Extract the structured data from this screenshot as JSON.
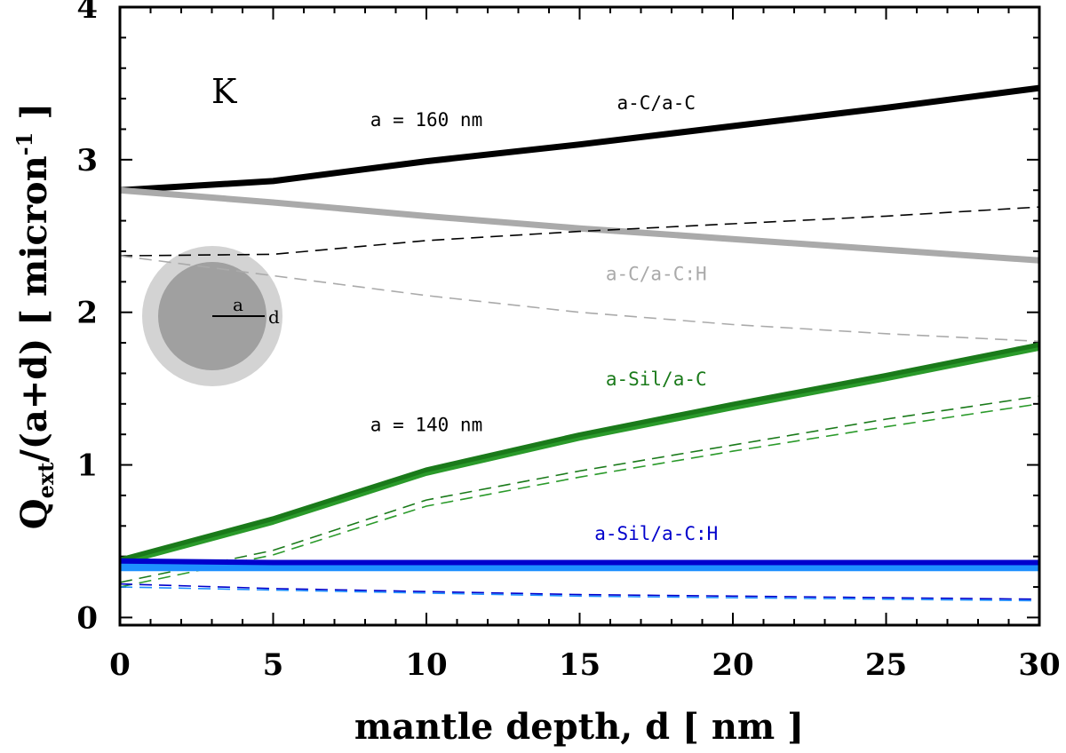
{
  "chart_data": {
    "type": "line",
    "panel_label": "K",
    "xlabel": "mantle depth, d [ nm ]",
    "ylabel_main": "Q",
    "ylabel_sub": "ext",
    "ylabel_rest": "/(a+d) [ micron",
    "ylabel_sup": "-1",
    "ylabel_close": " ]",
    "xlim": [
      0,
      30
    ],
    "ylim": [
      -0.05,
      4
    ],
    "xticks": [
      0,
      5,
      10,
      15,
      20,
      25,
      30
    ],
    "yticks": [
      0,
      1,
      2,
      3,
      4
    ],
    "x": [
      0,
      5,
      10,
      15,
      20,
      25,
      30
    ],
    "colors": {
      "black": "#000000",
      "grey": "#aaaaaa",
      "green_dark": "#1a7a1a",
      "green": "#2a9a2a",
      "blue": "#0000cc",
      "light_blue": "#1e90ff"
    },
    "series": [
      {
        "name": "a-C/a-C a=160 nm",
        "style": "solid",
        "color": "#000000",
        "width": 7,
        "values": [
          2.8,
          2.86,
          2.99,
          3.1,
          3.22,
          3.34,
          3.47
        ]
      },
      {
        "name": "a-C/a-C:H a=160 nm",
        "style": "solid",
        "color": "#aaaaaa",
        "width": 7,
        "values": [
          2.8,
          2.72,
          2.63,
          2.55,
          2.48,
          2.41,
          2.34
        ]
      },
      {
        "name": "a-C/a-C a=140 nm",
        "style": "dashed",
        "color": "#000000",
        "width": 1.6,
        "values": [
          2.37,
          2.38,
          2.47,
          2.53,
          2.58,
          2.63,
          2.69
        ]
      },
      {
        "name": "a-C/a-C:H a=140 nm",
        "style": "dashed",
        "color": "#aaaaaa",
        "width": 1.6,
        "values": [
          2.37,
          2.24,
          2.11,
          2.0,
          1.92,
          1.86,
          1.81
        ]
      },
      {
        "name": "a-Sil/a-C a=160 nm (1)",
        "style": "solid",
        "color": "#1a7a1a",
        "width": 8,
        "values": [
          0.37,
          0.64,
          0.96,
          1.19,
          1.39,
          1.58,
          1.78
        ]
      },
      {
        "name": "a-Sil/a-C a=160 nm (2)",
        "style": "solid",
        "color": "#2a9a2a",
        "width": 4,
        "values": [
          0.35,
          0.62,
          0.94,
          1.17,
          1.37,
          1.56,
          1.76
        ]
      },
      {
        "name": "a-Sil/a-C a=140 nm (1)",
        "style": "dashed",
        "color": "#1a7a1a",
        "width": 1.6,
        "values": [
          0.23,
          0.44,
          0.77,
          0.96,
          1.13,
          1.3,
          1.45
        ]
      },
      {
        "name": "a-Sil/a-C a=140 nm (2)",
        "style": "dashed",
        "color": "#2a9a2a",
        "width": 1.6,
        "values": [
          0.2,
          0.41,
          0.73,
          0.92,
          1.09,
          1.25,
          1.4
        ]
      },
      {
        "name": "a-Sil/a-C:H a=160 nm (1)",
        "style": "solid",
        "color": "#1e90ff",
        "width": 9,
        "values": [
          0.33,
          0.33,
          0.33,
          0.33,
          0.33,
          0.33,
          0.33
        ]
      },
      {
        "name": "a-Sil/a-C:H a=160 nm (2)",
        "style": "solid",
        "color": "#0000cc",
        "width": 6,
        "values": [
          0.37,
          0.36,
          0.36,
          0.36,
          0.36,
          0.36,
          0.36
        ]
      },
      {
        "name": "a-Sil/a-C:H a=140 nm (1)",
        "style": "dashed",
        "color": "#1e90ff",
        "width": 1.6,
        "values": [
          0.2,
          0.18,
          0.16,
          0.14,
          0.13,
          0.12,
          0.11
        ]
      },
      {
        "name": "a-Sil/a-C:H a=140 nm (2)",
        "style": "dashed",
        "color": "#0000cc",
        "width": 1.6,
        "values": [
          0.22,
          0.19,
          0.17,
          0.15,
          0.14,
          0.13,
          0.12
        ]
      }
    ],
    "annotations": [
      {
        "text": "a-C/a-C",
        "x": 17.5,
        "y": 3.33,
        "color": "#000000"
      },
      {
        "text": "a = 160 nm",
        "x": 10,
        "y": 3.22,
        "color": "#000000"
      },
      {
        "text": "a-C/a-C:H",
        "x": 17.5,
        "y": 2.21,
        "color": "#aaaaaa"
      },
      {
        "text": "a-Sil/a-C",
        "x": 17.5,
        "y": 1.52,
        "color": "#1a7a1a"
      },
      {
        "text": "a = 140 nm",
        "x": 10,
        "y": 1.22,
        "color": "#000000"
      },
      {
        "text": "a-Sil/a-C:H",
        "x": 17.5,
        "y": 0.51,
        "color": "#0000cc"
      }
    ],
    "inset": {
      "core_label": "a",
      "mantle_label": "d",
      "core_color": "#a0a0a0",
      "mantle_color": "#d3d3d3"
    }
  }
}
